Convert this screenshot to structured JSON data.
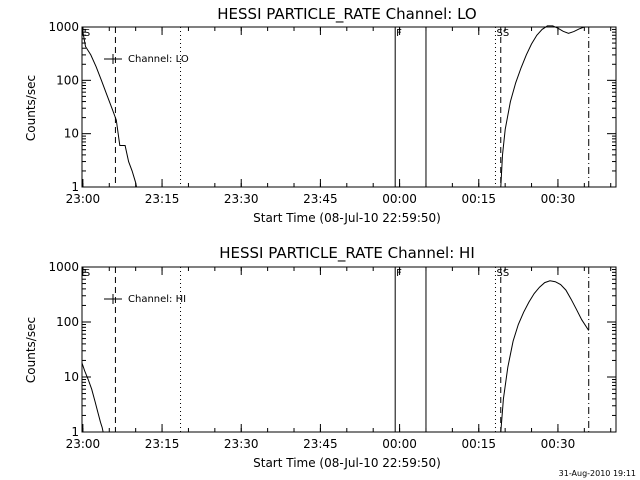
{
  "timestamp": "31-Aug-2010 19:11",
  "chart_data": [
    {
      "type": "line",
      "title": "HESSI PARTICLE_RATE Channel: LO",
      "xlabel": "Start Time (08-Jul-10 22:59:50)",
      "ylabel": "Counts/sec",
      "legend": "Channel: LO",
      "legend_position": "top-left",
      "y_scale": "log",
      "ylim": [
        1,
        1000
      ],
      "xlim": [
        "22:59:50",
        "00:41:00"
      ],
      "x_ticks": [
        "23:00",
        "23:15",
        "23:30",
        "23:45",
        "00:00",
        "00:15",
        "00:30"
      ],
      "y_ticks": [
        "1",
        "10",
        "100",
        "1000"
      ],
      "series": [
        {
          "name": "Channel: LO",
          "x": [
            "22:59:50",
            "23:00:30",
            "23:01:30",
            "23:02:30",
            "23:03:30",
            "23:04:30",
            "23:05:30",
            "23:06:20",
            "23:07:00",
            "23:08:00",
            "23:08:40",
            "23:09:20",
            "23:10:00",
            "23:10:10"
          ],
          "y": [
            1000,
            430,
            300,
            180,
            100,
            55,
            30,
            18,
            6,
            6,
            3,
            2,
            1.2,
            1
          ]
        },
        {
          "name": "Channel: LO",
          "x": [
            "00:19:10",
            "00:19:30",
            "00:20:00",
            "00:21:00",
            "00:22:00",
            "00:23:00",
            "00:24:00",
            "00:25:00",
            "00:26:00",
            "00:27:00",
            "00:28:00",
            "00:29:00",
            "00:30:00",
            "00:31:00",
            "00:32:00",
            "00:33:00",
            "00:34:00",
            "00:35:00",
            "00:35:50"
          ],
          "y": [
            1,
            4,
            12,
            40,
            90,
            170,
            300,
            480,
            700,
            900,
            1050,
            1050,
            950,
            830,
            760,
            820,
            920,
            1000,
            1000
          ]
        }
      ],
      "markers": [
        {
          "time": "23:06:10",
          "style": "dashed"
        },
        {
          "time": "23:18:30",
          "style": "dotted"
        },
        {
          "time": "23:59:10",
          "style": "solid",
          "label": "F"
        },
        {
          "time": "00:05:00",
          "style": "solid"
        },
        {
          "time": "00:18:10",
          "style": "dotted"
        },
        {
          "time": "00:19:10",
          "style": "dashed"
        },
        {
          "time": "00:35:50",
          "style": "dashdot"
        }
      ],
      "flags": [
        {
          "time": "23:00:00",
          "text": "S"
        },
        {
          "time": "23:59:10",
          "text": "F"
        },
        {
          "time": "00:18:10",
          "text": "SS"
        }
      ]
    },
    {
      "type": "line",
      "title": "HESSI PARTICLE_RATE Channel: HI",
      "xlabel": "Start Time (08-Jul-10 22:59:50)",
      "ylabel": "Counts/sec",
      "legend": "Channel: HI",
      "legend_position": "top-left",
      "y_scale": "log",
      "ylim": [
        1,
        1000
      ],
      "xlim": [
        "22:59:50",
        "00:41:00"
      ],
      "x_ticks": [
        "23:00",
        "23:15",
        "23:30",
        "23:45",
        "00:00",
        "00:15",
        "00:30"
      ],
      "y_ticks": [
        "1",
        "10",
        "100",
        "1000"
      ],
      "series": [
        {
          "name": "Channel: HI",
          "x": [
            "22:59:50",
            "23:00:20",
            "23:01:00",
            "23:01:40",
            "23:02:20",
            "23:02:50",
            "23:03:20",
            "23:03:40",
            "23:03:50"
          ],
          "y": [
            18,
            13,
            9,
            6,
            3.5,
            2.3,
            1.5,
            1.2,
            1
          ]
        },
        {
          "name": "Channel: HI",
          "x": [
            "00:19:10",
            "00:19:40",
            "00:20:30",
            "00:21:30",
            "00:22:30",
            "00:23:30",
            "00:24:30",
            "00:25:30",
            "00:26:30",
            "00:27:30",
            "00:28:30",
            "00:29:30",
            "00:30:30",
            "00:31:30",
            "00:32:30",
            "00:33:30",
            "00:34:30",
            "00:35:50"
          ],
          "y": [
            1,
            4,
            15,
            45,
            90,
            150,
            230,
            330,
            430,
            520,
            560,
            540,
            480,
            380,
            260,
            170,
            110,
            70
          ]
        }
      ],
      "markers": [
        {
          "time": "23:06:10",
          "style": "dashed"
        },
        {
          "time": "23:18:30",
          "style": "dotted"
        },
        {
          "time": "23:59:10",
          "style": "solid"
        },
        {
          "time": "00:05:00",
          "style": "solid"
        },
        {
          "time": "00:18:10",
          "style": "dotted"
        },
        {
          "time": "00:19:10",
          "style": "dashed"
        },
        {
          "time": "00:35:50",
          "style": "dashdot"
        }
      ],
      "flags": [
        {
          "time": "23:00:00",
          "text": "S"
        },
        {
          "time": "23:59:10",
          "text": "F"
        },
        {
          "time": "00:18:10",
          "text": "SS"
        }
      ]
    }
  ]
}
